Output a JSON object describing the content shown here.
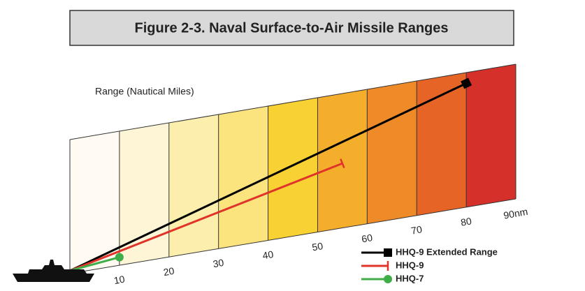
{
  "chart_data": {
    "type": "range",
    "title": "Figure 2-3. Naval Surface-to-Air Missile Ranges",
    "axis_label": "Range (Nautical Miles)",
    "xlim": [
      0,
      90
    ],
    "xticks": [
      10,
      20,
      30,
      40,
      50,
      60,
      70,
      80,
      {
        "value": 90,
        "label": "90nm"
      }
    ],
    "series": [
      {
        "name": "HHQ-9 Extended Range",
        "color": "#000000",
        "marker": "square",
        "range": 80
      },
      {
        "name": "HHQ-9",
        "color": "#e0342a",
        "marker": "bar",
        "range": 55
      },
      {
        "name": "HHQ-7",
        "color": "#3fae49",
        "marker": "circle",
        "range": 10
      }
    ]
  }
}
